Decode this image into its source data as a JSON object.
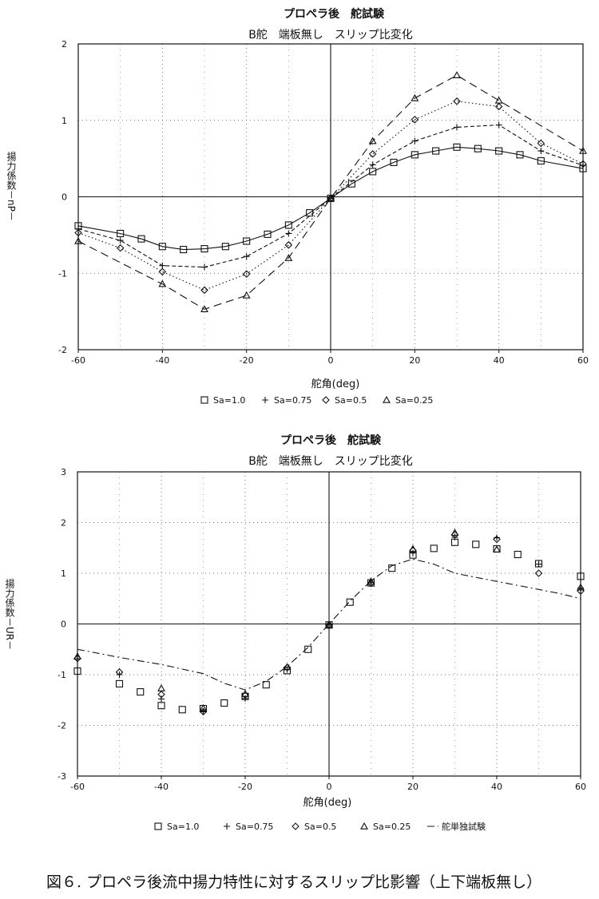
{
  "figure_caption": "図６. プロペラ後流中揚力特性に対するスリップ比影響（上下端板無し）",
  "chart_data": [
    {
      "type": "line",
      "title": "プロペラ後　舵試験",
      "subtitle": "B舵　端板無し　スリップ比変化",
      "xlabel": "舵角(deg)",
      "ylabel": "揚力係数－nP－",
      "xlim": [
        -60,
        60
      ],
      "ylim": [
        -2,
        2
      ],
      "xticks": [
        -60,
        -40,
        -20,
        0,
        20,
        40,
        60
      ],
      "yticks": [
        -2,
        -1,
        0,
        1,
        2
      ],
      "grid": true,
      "legend_position": "bottom",
      "series": [
        {
          "name": "Sa=1.0",
          "marker": "square",
          "line": "solid",
          "x": [
            -60,
            -50,
            -45,
            -40,
            -35,
            -30,
            -25,
            -20,
            -15,
            -10,
            -5,
            0,
            5,
            10,
            15,
            20,
            25,
            30,
            35,
            40,
            45,
            50,
            60
          ],
          "y": [
            -0.38,
            -0.48,
            -0.55,
            -0.65,
            -0.69,
            -0.68,
            -0.65,
            -0.58,
            -0.49,
            -0.37,
            -0.21,
            -0.02,
            0.17,
            0.33,
            0.45,
            0.55,
            0.6,
            0.65,
            0.63,
            0.6,
            0.55,
            0.47,
            0.37
          ]
        },
        {
          "name": "Sa=0.75",
          "marker": "plus",
          "line": "dashed",
          "x": [
            -60,
            -50,
            -40,
            -30,
            -20,
            -10,
            0,
            10,
            20,
            30,
            40,
            50,
            60
          ],
          "y": [
            -0.42,
            -0.57,
            -0.9,
            -0.92,
            -0.78,
            -0.48,
            -0.02,
            0.42,
            0.73,
            0.91,
            0.94,
            0.6,
            0.41
          ]
        },
        {
          "name": "Sa=0.5",
          "marker": "diamond",
          "line": "dotted",
          "x": [
            -60,
            -50,
            -40,
            -30,
            -20,
            -10,
            0,
            10,
            20,
            30,
            40,
            50,
            60
          ],
          "y": [
            -0.47,
            -0.67,
            -0.98,
            -1.22,
            -1.01,
            -0.63,
            -0.02,
            0.56,
            1.01,
            1.25,
            1.18,
            0.7,
            0.43
          ]
        },
        {
          "name": "Sa=0.25",
          "marker": "triangle",
          "line": "longdash",
          "x": [
            -60,
            -40,
            -30,
            -20,
            -10,
            0,
            10,
            20,
            30,
            40,
            60
          ],
          "y": [
            -0.58,
            -1.14,
            -1.47,
            -1.29,
            -0.8,
            -0.02,
            0.73,
            1.29,
            1.59,
            1.26,
            0.6
          ]
        }
      ]
    },
    {
      "type": "scatter",
      "title": "プロペラ後　舵試験",
      "subtitle": "B舵　端板無し　スリップ比変化",
      "xlabel": "舵角(deg)",
      "ylabel": "揚力係数－UR－",
      "xlim": [
        -60,
        60
      ],
      "ylim": [
        -3,
        3
      ],
      "xticks": [
        -60,
        -40,
        -20,
        0,
        20,
        40,
        60
      ],
      "yticks": [
        -3,
        -2,
        -1,
        0,
        1,
        2,
        3
      ],
      "grid": true,
      "legend_position": "bottom",
      "series": [
        {
          "name": "Sa=1.0",
          "marker": "square",
          "line": "none",
          "x": [
            -60,
            -50,
            -45,
            -40,
            -35,
            -30,
            -25,
            -20,
            -15,
            -10,
            -5,
            0,
            5,
            10,
            15,
            20,
            25,
            30,
            35,
            40,
            45,
            50,
            60
          ],
          "y": [
            -0.93,
            -1.18,
            -1.34,
            -1.61,
            -1.69,
            -1.67,
            -1.56,
            -1.43,
            -1.2,
            -0.92,
            -0.5,
            -0.02,
            0.43,
            0.81,
            1.1,
            1.36,
            1.49,
            1.61,
            1.57,
            1.48,
            1.37,
            1.19,
            0.94
          ]
        },
        {
          "name": "Sa=0.75",
          "marker": "plus",
          "line": "none",
          "x": [
            -60,
            -50,
            -40,
            -30,
            -20,
            -10,
            0,
            10,
            20,
            30,
            40,
            50,
            60
          ],
          "y": [
            -0.69,
            -1.0,
            -1.48,
            -1.72,
            -1.47,
            -0.9,
            -0.02,
            0.82,
            1.4,
            1.71,
            1.7,
            1.18,
            0.71
          ]
        },
        {
          "name": "Sa=0.5",
          "marker": "diamond",
          "line": "none",
          "x": [
            -60,
            -50,
            -40,
            -30,
            -20,
            -10,
            0,
            10,
            20,
            30,
            40,
            50,
            60
          ],
          "y": [
            -0.68,
            -0.95,
            -1.39,
            -1.73,
            -1.4,
            -0.86,
            -0.02,
            0.8,
            1.45,
            1.76,
            1.67,
            1.0,
            0.65
          ]
        },
        {
          "name": "Sa=0.25",
          "marker": "triangle",
          "line": "none",
          "x": [
            -60,
            -40,
            -30,
            -20,
            -10,
            0,
            10,
            20,
            30,
            40,
            60
          ],
          "y": [
            -0.64,
            -1.27,
            -1.66,
            -1.38,
            -0.85,
            -0.02,
            0.84,
            1.48,
            1.8,
            1.47,
            0.72
          ]
        },
        {
          "name": "舵単独試験",
          "marker": "none",
          "line": "dashdot",
          "x": [
            -60,
            -50,
            -40,
            -30,
            -25,
            -20,
            -15,
            -10,
            -5,
            0,
            5,
            10,
            15,
            20,
            25,
            30,
            35,
            40,
            45,
            50,
            55,
            60
          ],
          "y": [
            -0.5,
            -0.66,
            -0.8,
            -0.98,
            -1.17,
            -1.3,
            -1.13,
            -0.84,
            -0.46,
            0.0,
            0.45,
            0.85,
            1.15,
            1.28,
            1.18,
            1.0,
            0.92,
            0.84,
            0.76,
            0.68,
            0.6,
            0.5
          ]
        }
      ]
    }
  ]
}
